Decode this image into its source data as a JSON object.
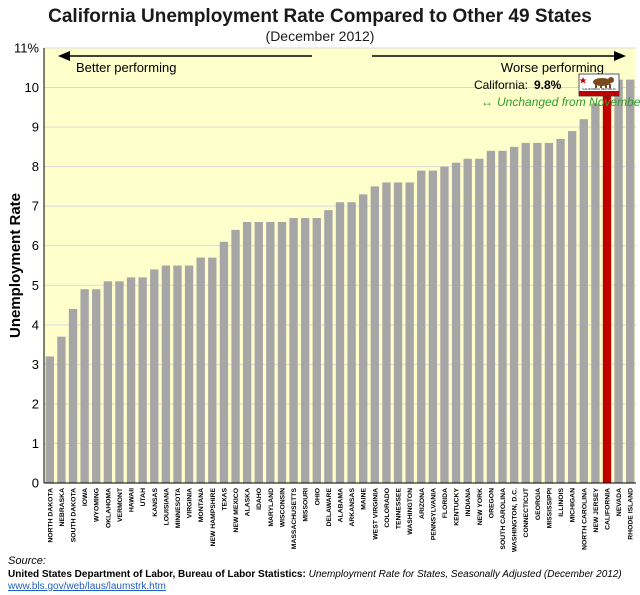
{
  "chart_data": {
    "type": "bar",
    "title": "California Unemployment Rate Compared to Other 49 States",
    "subtitle": "(December 2012)",
    "ylabel": "Unemployment Rate",
    "ylim": [
      0,
      11
    ],
    "yticks": [
      "0",
      "1",
      "2",
      "3",
      "4",
      "5",
      "6",
      "7",
      "8",
      "9",
      "10",
      "11%"
    ],
    "categories": [
      "NORTH DAKOTA",
      "NEBRASKA",
      "SOUTH DAKOTA",
      "IOWA",
      "WYOMING",
      "OKLAHOMA",
      "VERMONT",
      "HAWAII",
      "UTAH",
      "KANSAS",
      "LOUISIANA",
      "MINNESOTA",
      "VIRGINIA",
      "MONTANA",
      "NEW HAMPSHIRE",
      "TEXAS",
      "NEW MEXICO",
      "ALASKA",
      "IDAHO",
      "MARYLAND",
      "WISCONSIN",
      "MASSACHUSETTS",
      "MISSOURI",
      "OHIO",
      "DELAWARE",
      "ALABAMA",
      "ARKANSAS",
      "MAINE",
      "WEST VIRGINIA",
      "COLORADO",
      "TENNESSEE",
      "WASHINGTON",
      "ARIZONA",
      "PENNSYLVANIA",
      "FLORIDA",
      "KENTUCKY",
      "INDIANA",
      "NEW YORK",
      "OREGON",
      "SOUTH CAROLINA",
      "WASHINGTON, D.C.",
      "CONNECTICUT",
      "GEORGIA",
      "MISSISSIPPI",
      "ILLINOIS",
      "MICHIGAN",
      "NORTH CAROLINA",
      "NEW JERSEY",
      "CALIFORNIA",
      "NEVADA",
      "RHODE ISLAND"
    ],
    "values": [
      3.2,
      3.7,
      4.4,
      4.9,
      4.9,
      5.1,
      5.1,
      5.2,
      5.2,
      5.4,
      5.5,
      5.5,
      5.5,
      5.7,
      5.7,
      6.1,
      6.4,
      6.6,
      6.6,
      6.6,
      6.6,
      6.7,
      6.7,
      6.7,
      6.9,
      7.1,
      7.1,
      7.3,
      7.5,
      7.6,
      7.6,
      7.6,
      7.9,
      7.9,
      8.0,
      8.1,
      8.2,
      8.2,
      8.4,
      8.4,
      8.5,
      8.6,
      8.6,
      8.6,
      8.7,
      8.9,
      9.2,
      9.6,
      9.8,
      10.2,
      10.2
    ],
    "highlight": "CALIFORNIA",
    "colors": {
      "bar": "#a6a6a6",
      "highlight_bar": "#c00000",
      "plot_background": "#ffffcc",
      "unchanged_text": "#2e9a2e",
      "flag_star": "#c00000",
      "flag_bear": "#7a4a1e"
    },
    "annotations": {
      "better": "Better performing",
      "worse": "Worse performing",
      "ca_label": "California:",
      "ca_value": "9.8%",
      "unchanged": "Unchanged from November",
      "unchanged_icon": "↔",
      "flag_text": "CALIFORNIA REPUBLIC"
    }
  },
  "source": {
    "label": "Source:",
    "agency": "United States Department of Labor, Bureau of Labor Statistics:",
    "dataset": "Unemployment Rate for States, Seasonally Adjusted",
    "period": "(December 2012)",
    "url": "www.bls.gov/web/laus/laumstrk.htm"
  }
}
